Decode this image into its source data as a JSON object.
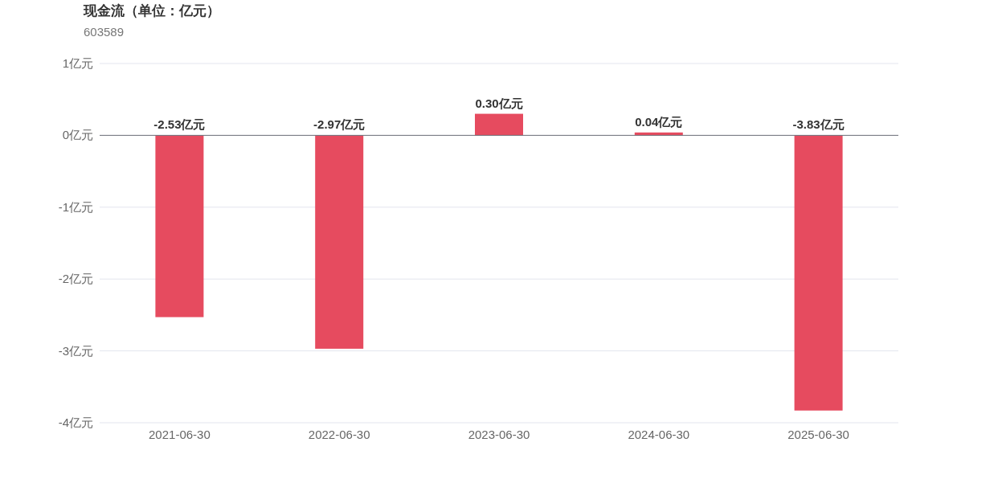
{
  "chart_data": {
    "type": "bar",
    "title": "现金流（单位：亿元）",
    "subtitle": "603589",
    "categories": [
      "2021-06-30",
      "2022-06-30",
      "2023-06-30",
      "2024-06-30",
      "2025-06-30"
    ],
    "values": [
      -2.53,
      -2.97,
      0.3,
      0.04,
      -3.83
    ],
    "value_labels": [
      "-2.53亿元",
      "-2.97亿元",
      "0.30亿元",
      "0.04亿元",
      "-3.83亿元"
    ],
    "color": "#e64b5f",
    "ylim": [
      -4,
      1
    ],
    "yticks": [
      {
        "value": 1,
        "label": "1亿元"
      },
      {
        "value": 0,
        "label": "0亿元"
      },
      {
        "value": -1,
        "label": "-1亿元"
      },
      {
        "value": -2,
        "label": "-2亿元"
      },
      {
        "value": -3,
        "label": "-3亿元"
      },
      {
        "value": -4,
        "label": "-4亿元"
      }
    ],
    "grid": "y"
  }
}
